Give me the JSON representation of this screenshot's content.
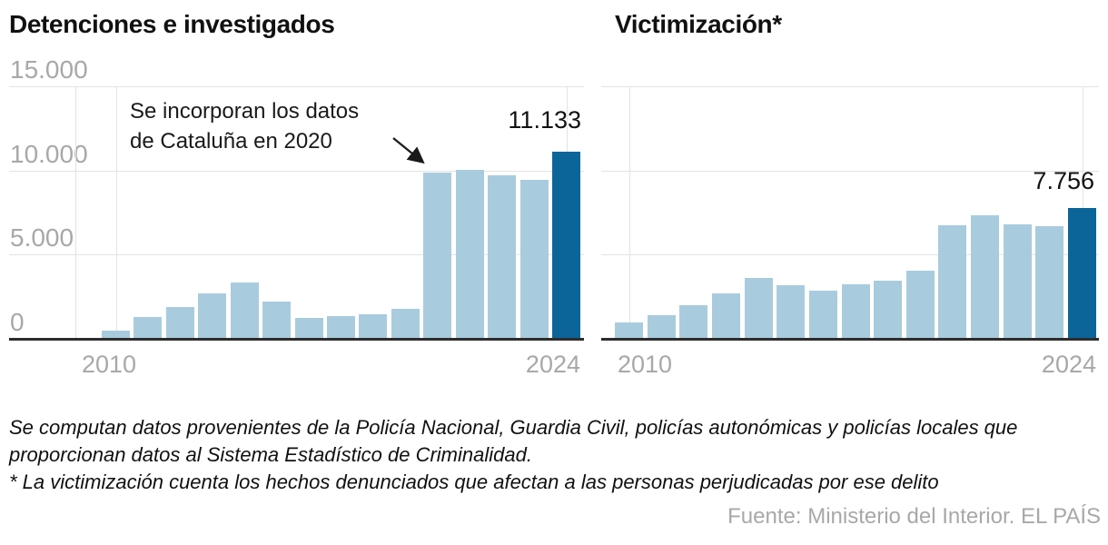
{
  "colors": {
    "bar_light": "#a9cbde",
    "bar_highlight": "#0c6598",
    "text_dark": "#111111",
    "text_gray": "#a8a8a8",
    "gridline": "#e3e3e3",
    "axis": "#2d2d2d"
  },
  "chart_data": [
    {
      "type": "bar",
      "title": "Detenciones e investigados",
      "categories": [
        "2010",
        "2011",
        "2012",
        "2013",
        "2014",
        "2015",
        "2016",
        "2017",
        "2018",
        "2019",
        "2020",
        "2021",
        "2022",
        "2023",
        "2024"
      ],
      "values": [
        500,
        1300,
        1900,
        2700,
        3350,
        2200,
        1250,
        1350,
        1450,
        1800,
        9900,
        10050,
        9700,
        9450,
        11133
      ],
      "ylim": [
        0,
        15000
      ],
      "y_ticks": [
        {
          "value": 15000,
          "label": "15.000"
        },
        {
          "value": 10000,
          "label": "10.000"
        },
        {
          "value": 5000,
          "label": "5.000"
        },
        {
          "value": 0,
          "label": "0"
        }
      ],
      "x_tick_labels": {
        "first": "2010",
        "last": "2024"
      },
      "grid": "horizontal lines at 5.000/10.000/15.000 plus vertical marks at 2010 and 2024",
      "legend_position": "none",
      "highlight_index": 14,
      "last_bar_label": "11.133",
      "annotation": {
        "line1": "Se incorporan los datos",
        "line2": "de Cataluña en 2020",
        "target_year": "2020"
      }
    },
    {
      "type": "bar",
      "title": "Victimización*",
      "categories": [
        "2010",
        "2011",
        "2012",
        "2013",
        "2014",
        "2015",
        "2016",
        "2017",
        "2018",
        "2019",
        "2020",
        "2021",
        "2022",
        "2023",
        "2024"
      ],
      "values": [
        950,
        1400,
        2000,
        2700,
        3600,
        3200,
        2870,
        3230,
        3450,
        4050,
        6750,
        7350,
        6790,
        6680,
        7756
      ],
      "ylim": [
        0,
        15000
      ],
      "x_tick_labels": {
        "first": "2010",
        "last": "2024"
      },
      "grid": "horizontal lines at 5.000/10.000/15.000 plus vertical marks at 2010 and 2024",
      "legend_position": "none",
      "highlight_index": 14,
      "last_bar_label": "7.756"
    }
  ],
  "footer": {
    "note_line1": "Se computan datos provenientes de la Policía Nacional, Guardia Civil, policías autonómicas y policías locales que",
    "note_line2": "proporcionan datos al Sistema Estadístico de Criminalidad.",
    "asterisk_note": "* La victimización cuenta los hechos denunciados que afectan a las personas perjudicadas por ese delito",
    "source": "Fuente: Ministerio del Interior. EL PAÍS"
  }
}
